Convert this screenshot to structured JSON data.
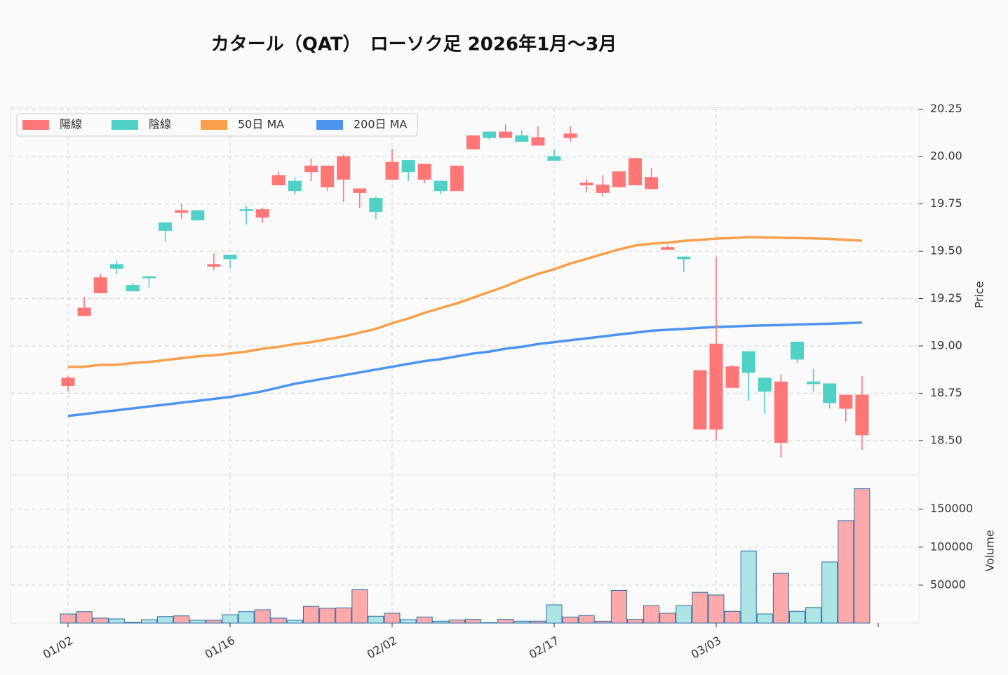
{
  "chart_data": {
    "type": "candlestick",
    "title": "カタール（QAT）　ローソク足 2026年1月～3月",
    "categories": [
      "01/02",
      null,
      null,
      null,
      null,
      null,
      null,
      null,
      null,
      null,
      "01/16",
      null,
      null,
      null,
      null,
      null,
      null,
      null,
      null,
      null,
      "02/02",
      null,
      null,
      null,
      null,
      null,
      null,
      null,
      null,
      null,
      "02/17",
      null,
      null,
      null,
      null,
      null,
      null,
      null,
      null,
      null,
      "03/03",
      null,
      null,
      null,
      null,
      null,
      null,
      null,
      null,
      null
    ],
    "up_name": "陽線",
    "down_name": "陰線",
    "up_color": "#ff7676",
    "down_color": "#4fd1c5",
    "open": [
      18.79,
      19.16,
      19.28,
      19.43,
      19.32,
      19.365,
      19.65,
      19.705,
      19.715,
      19.42,
      19.48,
      19.72,
      19.68,
      19.85,
      19.87,
      19.92,
      19.84,
      19.88,
      19.81,
      19.78,
      19.88,
      19.98,
      19.88,
      19.87,
      19.82,
      20.04,
      20.13,
      20.1,
      20.11,
      20.06,
      20.0,
      20.1,
      19.85,
      19.81,
      19.84,
      19.85,
      19.83,
      19.51,
      19.47,
      18.56,
      18.56,
      18.78,
      18.97,
      18.83,
      18.49,
      19.02,
      18.81,
      18.8,
      18.67,
      18.53
    ],
    "high": [
      18.84,
      19.26,
      19.38,
      19.45,
      19.33,
      19.37,
      19.65,
      19.75,
      19.715,
      19.49,
      19.48,
      19.74,
      19.73,
      19.92,
      19.89,
      19.99,
      19.95,
      20.01,
      19.83,
      19.79,
      20.04,
      19.98,
      19.96,
      19.87,
      19.95,
      20.11,
      20.13,
      20.17,
      20.14,
      20.16,
      20.04,
      20.16,
      19.88,
      19.9,
      19.92,
      19.99,
      19.94,
      19.53,
      19.47,
      18.87,
      19.47,
      18.9,
      18.97,
      18.83,
      18.85,
      19.02,
      18.88,
      18.8,
      18.74,
      18.84
    ],
    "low": [
      18.76,
      19.16,
      19.28,
      19.38,
      19.29,
      19.31,
      19.55,
      19.67,
      19.665,
      19.4,
      19.41,
      19.64,
      19.65,
      19.85,
      19.8,
      19.87,
      19.82,
      19.76,
      19.73,
      19.67,
      19.88,
      19.87,
      19.86,
      19.8,
      19.82,
      20.04,
      20.09,
      20.1,
      20.08,
      20.06,
      19.98,
      20.08,
      19.81,
      19.79,
      19.84,
      19.85,
      19.83,
      19.51,
      19.39,
      18.56,
      18.5,
      18.78,
      18.71,
      18.64,
      18.41,
      18.91,
      18.76,
      18.67,
      18.6,
      18.45
    ],
    "close": [
      18.83,
      19.2,
      19.36,
      19.41,
      19.29,
      19.36,
      19.61,
      19.715,
      19.665,
      19.43,
      19.46,
      19.715,
      19.72,
      19.9,
      19.82,
      19.95,
      19.95,
      20.0,
      19.83,
      19.71,
      19.97,
      19.92,
      19.96,
      19.82,
      19.95,
      20.11,
      20.1,
      20.13,
      20.08,
      20.1,
      19.98,
      20.12,
      19.86,
      19.85,
      19.92,
      19.99,
      19.89,
      19.52,
      19.46,
      18.87,
      19.01,
      18.89,
      18.86,
      18.76,
      18.81,
      18.93,
      18.8,
      18.7,
      18.74,
      18.74
    ],
    "series": [
      {
        "name": "50日 MA",
        "color": "#f9a04a",
        "values": [
          18.89,
          18.89,
          18.9,
          18.9,
          18.91,
          18.915,
          18.925,
          18.935,
          18.945,
          18.95,
          18.96,
          18.97,
          18.985,
          18.995,
          19.01,
          19.02,
          19.035,
          19.05,
          19.07,
          19.09,
          19.12,
          19.145,
          19.175,
          19.2,
          19.225,
          19.255,
          19.285,
          19.315,
          19.35,
          19.38,
          19.405,
          19.435,
          19.46,
          19.485,
          19.51,
          19.53,
          19.54,
          19.545,
          19.555,
          19.56,
          19.567,
          19.57,
          19.575,
          19.573,
          19.571,
          19.57,
          19.568,
          19.565,
          19.56,
          19.556
        ]
      },
      {
        "name": "200日 MA",
        "color": "#4d94f0",
        "values": [
          18.63,
          18.64,
          18.65,
          18.66,
          18.67,
          18.68,
          18.69,
          18.7,
          18.71,
          18.72,
          18.73,
          18.745,
          18.76,
          18.78,
          18.8,
          18.815,
          18.83,
          18.845,
          18.86,
          18.875,
          18.89,
          18.905,
          18.92,
          18.93,
          18.945,
          18.96,
          18.97,
          18.985,
          18.995,
          19.01,
          19.02,
          19.03,
          19.04,
          19.05,
          19.06,
          19.07,
          19.08,
          19.085,
          19.09,
          19.095,
          19.1,
          19.103,
          19.106,
          19.108,
          19.11,
          19.113,
          19.115,
          19.117,
          19.12,
          19.123
        ]
      }
    ],
    "ylabel": "Price",
    "ylim": [
      18.318,
      20.26
    ],
    "yticks": [
      {
        "value": 18.5,
        "label": "18.50"
      },
      18.75,
      {
        "value": 19.0,
        "label": "19.00"
      },
      19.25,
      {
        "value": 19.5,
        "label": "19.50"
      },
      19.75,
      {
        "value": 20.0,
        "label": "20.00"
      },
      20.25
    ],
    "grid": true,
    "legend": "upper left",
    "volume": {
      "ylabel": "Volume",
      "up_color": "#ffaaaa",
      "down_color": "#ade5e5",
      "edge_color": "#2b6ea8",
      "values": [
        12000,
        15000,
        6500,
        5500,
        1000,
        4500,
        8500,
        9500,
        3700,
        3700,
        11000,
        15000,
        17500,
        6500,
        3700,
        22000,
        19500,
        20000,
        44000,
        9000,
        13000,
        4600,
        8000,
        2500,
        4000,
        5000,
        600,
        5000,
        2500,
        2500,
        24000,
        8000,
        10000,
        2500,
        43000,
        5000,
        23000,
        13000,
        23000,
        40500,
        37000,
        15500,
        95000,
        12000,
        65500,
        15500,
        20500,
        80500,
        135000,
        177000
      ],
      "ylim": [
        0,
        195000
      ],
      "yticks": [
        50000,
        100000,
        150000
      ]
    }
  }
}
